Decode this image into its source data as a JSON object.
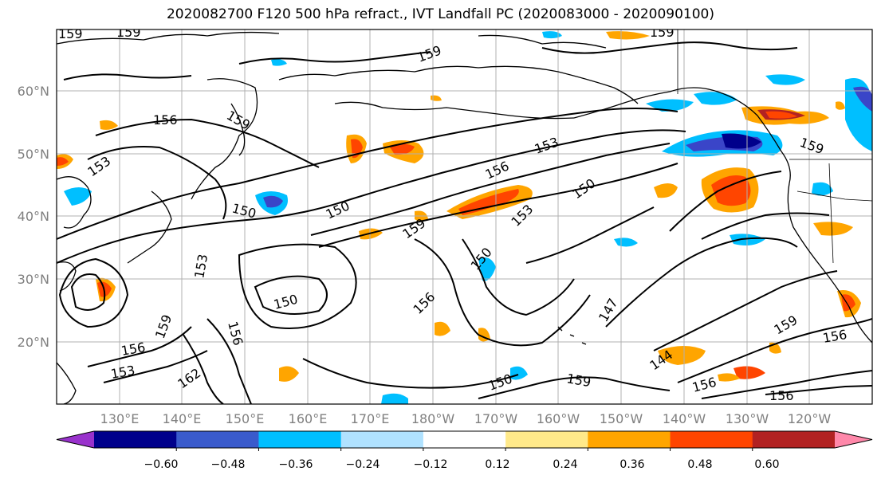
{
  "title": "2020082700 F120 500 hPa refract., IVT Landfall PC (2020083000 - 2020090100)",
  "lat_ticks": [
    "60°N",
    "50°N",
    "40°N",
    "30°N",
    "20°N"
  ],
  "lon_ticks": [
    "130°E",
    "140°E",
    "150°E",
    "160°E",
    "170°E",
    "180°W",
    "170°W",
    "160°W",
    "150°W",
    "140°W",
    "130°W",
    "120°W"
  ],
  "contour_labels": [
    "159",
    "159",
    "159",
    "159",
    "156",
    "159",
    "153",
    "150",
    "150",
    "156",
    "153",
    "150",
    "159",
    "153",
    "150",
    "156",
    "150",
    "159",
    "147",
    "156",
    "162",
    "144",
    "156",
    "159",
    "156",
    "153",
    "150",
    "159",
    "153",
    "156",
    "159",
    "156"
  ],
  "colorbar": {
    "tick_labels": [
      "−0.60",
      "−0.48",
      "−0.36",
      "−0.24",
      "−0.12",
      "0.12",
      "0.24",
      "0.36",
      "0.48",
      "0.60"
    ],
    "colors": [
      "#9932cc",
      "#00008b",
      "#3a5bcc",
      "#00bfff",
      "#b0e2ff",
      "#ffffff",
      "#ffe98a",
      "#ffa500",
      "#ff4500",
      "#b22222",
      "#ff88aa"
    ],
    "extend": "both"
  },
  "colors": {
    "neg_strong": "#3a45c8",
    "neg_mid": "#00bfff",
    "neg_light": "#b0e2ff",
    "pos_light": "#ffe98a",
    "pos_mid": "#ffa500",
    "pos_strong": "#ff4500"
  }
}
